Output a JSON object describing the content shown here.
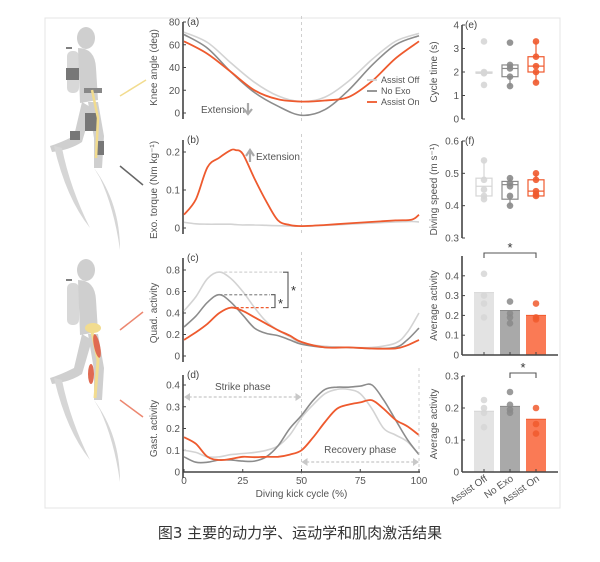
{
  "caption": "图3 主要的动力学、运动学和肌肉激活结果",
  "colors": {
    "assist_off": "#d3d3d3",
    "no_exo": "#8c8c8c",
    "assist_on": "#ee5a2e",
    "assist_off_bar": "#e3e3e3",
    "no_exo_bar": "#a9a9a9",
    "assist_on_bar": "#fa7a55",
    "axis": "#444444",
    "illustration_bone": "#f2dc8f",
    "illustration_muscle": "#e06a52"
  },
  "illustration": {
    "top": {
      "label": "diver-with-knee-exoskeleton"
    },
    "bottom": {
      "label": "diver-muscle-anatomy"
    }
  },
  "chart_data": [
    {
      "id": "a",
      "panel_label": "(a)",
      "type": "line",
      "ylabel": "Knee angle (deg)",
      "xlabel": "",
      "ylim": [
        0,
        80
      ],
      "yticks": [
        "0",
        "20",
        "40",
        "60",
        "80"
      ],
      "annotation": "Extension",
      "annotation_arrow": "down",
      "legend": [
        "Assist Off",
        "No Exo",
        "Assist On"
      ],
      "x": [
        0,
        10,
        20,
        30,
        40,
        50,
        60,
        70,
        80,
        90,
        100
      ],
      "series": [
        {
          "name": "Assist Off",
          "values": [
            71,
            62,
            44,
            27,
            15,
            10,
            14,
            28,
            47,
            63,
            70
          ]
        },
        {
          "name": "No Exo",
          "values": [
            69,
            57,
            36,
            18,
            6,
            -2,
            3,
            20,
            42,
            60,
            68
          ]
        },
        {
          "name": "Assist On",
          "values": [
            63,
            52,
            36,
            20,
            12,
            10,
            11,
            14,
            28,
            48,
            63
          ]
        }
      ]
    },
    {
      "id": "b",
      "panel_label": "(b)",
      "type": "line",
      "ylabel": "Exo. torque (Nm kg⁻¹)",
      "xlabel": "",
      "ylim": [
        0,
        0.2
      ],
      "yticks": [
        "0",
        "0.1",
        "0.2"
      ],
      "annotation": "Extension",
      "annotation_arrow": "up",
      "x": [
        0,
        5,
        10,
        15,
        20,
        22,
        25,
        30,
        35,
        40,
        45,
        50,
        60,
        70,
        80,
        90,
        97,
        100
      ],
      "series": [
        {
          "name": "Assist Off",
          "values": [
            0.015,
            0.011,
            0.01,
            0.01,
            0.01,
            0.009,
            0.008,
            0.008,
            0.007,
            0.006,
            0.005,
            0.005,
            0.007,
            0.01,
            0.013,
            0.016,
            0.017,
            0.016
          ]
        },
        {
          "name": "Assist On",
          "values": [
            0.035,
            0.075,
            0.16,
            0.185,
            0.205,
            0.205,
            0.195,
            0.13,
            0.07,
            0.02,
            0.008,
            0.005,
            0.008,
            0.012,
            0.016,
            0.02,
            0.022,
            0.035
          ]
        }
      ]
    },
    {
      "id": "c",
      "panel_label": "(c)",
      "type": "line",
      "ylabel": "Quad. activity",
      "xlabel": "",
      "ylim": [
        0,
        0.8
      ],
      "yticks": [
        "0",
        "0.2",
        "0.4",
        "0.6",
        "0.8"
      ],
      "significance": [
        "*",
        "*"
      ],
      "peaks": {
        "Assist Off": 0.78,
        "No Exo": 0.57,
        "Assist On": 0.45
      },
      "x": [
        0,
        5,
        10,
        15,
        20,
        25,
        30,
        35,
        40,
        45,
        50,
        60,
        70,
        80,
        90,
        95,
        100
      ],
      "series": [
        {
          "name": "Assist Off",
          "values": [
            0.42,
            0.55,
            0.72,
            0.78,
            0.72,
            0.6,
            0.45,
            0.32,
            0.24,
            0.18,
            0.12,
            0.09,
            0.08,
            0.08,
            0.12,
            0.22,
            0.4
          ]
        },
        {
          "name": "No Exo",
          "values": [
            0.27,
            0.37,
            0.5,
            0.57,
            0.5,
            0.38,
            0.26,
            0.21,
            0.19,
            0.15,
            0.11,
            0.08,
            0.08,
            0.07,
            0.08,
            0.15,
            0.26
          ]
        },
        {
          "name": "Assist On",
          "values": [
            0.15,
            0.22,
            0.3,
            0.4,
            0.45,
            0.42,
            0.36,
            0.3,
            0.24,
            0.19,
            0.13,
            0.08,
            0.08,
            0.07,
            0.07,
            0.1,
            0.15
          ]
        }
      ]
    },
    {
      "id": "d",
      "panel_label": "(d)",
      "type": "line",
      "ylabel": "Gast. activity",
      "xlabel": "Diving kick cycle (%)",
      "ylim": [
        0,
        0.4
      ],
      "yticks": [
        "0",
        "0.1",
        "0.2",
        "0.3",
        "0.4"
      ],
      "xticks": [
        "0",
        "25",
        "50",
        "75",
        "100"
      ],
      "phase_labels": {
        "strike": "Strike phase",
        "recovery": "Recovery phase"
      },
      "x": [
        0,
        5,
        10,
        15,
        20,
        25,
        30,
        35,
        40,
        45,
        50,
        55,
        60,
        65,
        70,
        75,
        80,
        85,
        90,
        95,
        100
      ],
      "series": [
        {
          "name": "Assist Off",
          "values": [
            0.1,
            0.09,
            0.07,
            0.07,
            0.08,
            0.085,
            0.09,
            0.1,
            0.12,
            0.17,
            0.25,
            0.31,
            0.36,
            0.38,
            0.38,
            0.36,
            0.29,
            0.2,
            0.17,
            0.14,
            0.08
          ]
        },
        {
          "name": "No Exo",
          "values": [
            0.07,
            0.045,
            0.045,
            0.055,
            0.055,
            0.05,
            0.05,
            0.07,
            0.12,
            0.2,
            0.26,
            0.33,
            0.38,
            0.39,
            0.39,
            0.395,
            0.4,
            0.33,
            0.24,
            0.15,
            0.08
          ]
        },
        {
          "name": "Assist On",
          "values": [
            0.16,
            0.13,
            0.07,
            0.055,
            0.06,
            0.07,
            0.068,
            0.07,
            0.07,
            0.08,
            0.1,
            0.16,
            0.23,
            0.29,
            0.31,
            0.32,
            0.33,
            0.29,
            0.24,
            0.21,
            0.17
          ]
        }
      ]
    },
    {
      "id": "e",
      "panel_label": "(e)",
      "type": "box",
      "ylabel": "Cycle time (s)",
      "ylim": [
        0,
        4
      ],
      "yticks": [
        "0",
        "1",
        "2",
        "3",
        "4"
      ],
      "categories": [
        "Assist Off",
        "No Exo",
        "Assist On"
      ],
      "boxes": [
        {
          "name": "Assist Off",
          "q1": 1.95,
          "median": 1.95,
          "q3": 2.0,
          "min": 1.95,
          "max": 2.0,
          "points": [
            3.3,
            2.0,
            1.95,
            1.95,
            1.45
          ]
        },
        {
          "name": "No Exo",
          "q1": 1.8,
          "median": 2.15,
          "q3": 2.3,
          "min": 1.4,
          "max": 2.3,
          "points": [
            3.25,
            2.3,
            2.15,
            1.8,
            1.4
          ]
        },
        {
          "name": "Assist On",
          "q1": 2.0,
          "median": 2.25,
          "q3": 2.65,
          "min": 1.55,
          "max": 3.3,
          "points": [
            3.3,
            2.65,
            2.25,
            2.0,
            1.55
          ]
        }
      ]
    },
    {
      "id": "f",
      "panel_label": "(f)",
      "type": "box",
      "ylabel": "Diving speed (m s⁻¹)",
      "ylim": [
        0.3,
        0.6
      ],
      "yticks": [
        "0.3",
        "0.4",
        "0.5",
        "0.6"
      ],
      "categories": [
        "Assist Off",
        "No Exo",
        "Assist On"
      ],
      "boxes": [
        {
          "name": "Assist Off",
          "q1": 0.43,
          "median": 0.46,
          "q3": 0.485,
          "min": 0.42,
          "max": 0.54,
          "points": [
            0.54,
            0.48,
            0.45,
            0.43,
            0.42
          ]
        },
        {
          "name": "No Exo",
          "q1": 0.42,
          "median": 0.465,
          "q3": 0.475,
          "min": 0.4,
          "max": 0.485,
          "points": [
            0.485,
            0.47,
            0.46,
            0.43,
            0.4
          ]
        },
        {
          "name": "Assist On",
          "q1": 0.43,
          "median": 0.445,
          "q3": 0.48,
          "min": 0.43,
          "max": 0.5,
          "points": [
            0.5,
            0.48,
            0.445,
            0.435,
            0.43
          ]
        }
      ]
    },
    {
      "id": "g",
      "panel_label": "",
      "type": "bar",
      "ylabel": "Average activity",
      "ylim": [
        0,
        0.5
      ],
      "yticks": [
        "0",
        "0.1",
        "0.2",
        "0.3",
        "0.4"
      ],
      "categories": [
        "Assist Off",
        "No Exo",
        "Assist On"
      ],
      "values": [
        0.315,
        0.225,
        0.2
      ],
      "points": [
        [
          0.41,
          0.3,
          0.26,
          0.19
        ],
        [
          0.27,
          0.21,
          0.19,
          0.16
        ],
        [
          0.26,
          0.19,
          0.18
        ]
      ],
      "significance": {
        "between": [
          "Assist Off",
          "Assist On"
        ],
        "label": "*"
      }
    },
    {
      "id": "h",
      "panel_label": "",
      "type": "bar",
      "ylabel": "Average activity",
      "ylim": [
        0,
        0.3
      ],
      "yticks": [
        "0",
        "0.1",
        "0.2",
        "0.3"
      ],
      "categories": [
        "Assist Off",
        "No Exo",
        "Assist On"
      ],
      "values": [
        0.19,
        0.205,
        0.165
      ],
      "points": [
        [
          0.225,
          0.2,
          0.185,
          0.14
        ],
        [
          0.25,
          0.21,
          0.195,
          0.185
        ],
        [
          0.2,
          0.15,
          0.12
        ]
      ],
      "significance": {
        "between": [
          "No Exo",
          "Assist On"
        ],
        "label": "*"
      }
    }
  ]
}
